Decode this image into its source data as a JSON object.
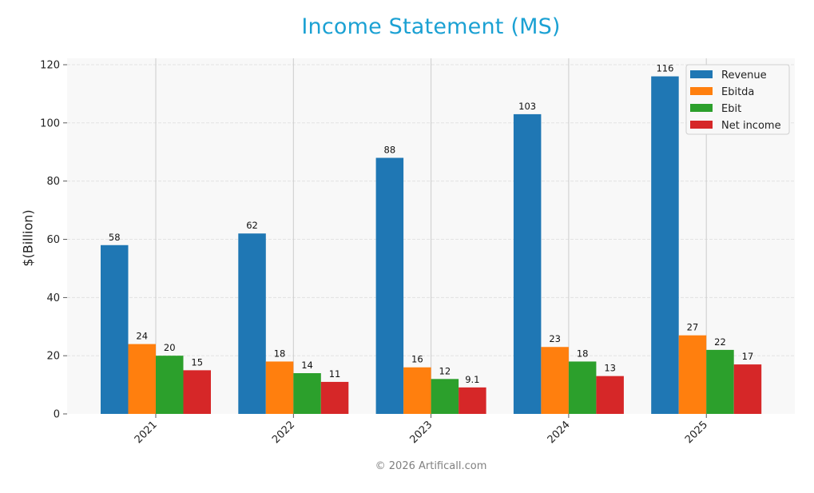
{
  "title": "Income Statement (MS)",
  "footer": "© 2026 Artificall.com",
  "colors": {
    "title": "#1ba1d3",
    "plot_background": "#f8f8f8",
    "Revenue": "#1f77b4",
    "Ebitda": "#ff7f0e",
    "Ebit": "#2ca02c",
    "Net income": "#d62728"
  },
  "chart_data": {
    "type": "bar",
    "title": "Income Statement (MS)",
    "xlabel": "",
    "ylabel": "$(Billion)",
    "ylim": [
      0,
      122
    ],
    "yticks": [
      0,
      20,
      40,
      60,
      80,
      100,
      120
    ],
    "grid": true,
    "legend_position": "upper right",
    "categories": [
      "2021",
      "2022",
      "2023",
      "2024",
      "2025"
    ],
    "series": [
      {
        "name": "Revenue",
        "color": "#1f77b4",
        "values": [
          58,
          62,
          88,
          103,
          116
        ],
        "labels": [
          "58",
          "62",
          "88",
          "103",
          "116"
        ]
      },
      {
        "name": "Ebitda",
        "color": "#ff7f0e",
        "values": [
          24,
          18,
          16,
          23,
          27
        ],
        "labels": [
          "24",
          "18",
          "16",
          "23",
          "27"
        ]
      },
      {
        "name": "Ebit",
        "color": "#2ca02c",
        "values": [
          20,
          14,
          12,
          18,
          22
        ],
        "labels": [
          "20",
          "14",
          "12",
          "18",
          "22"
        ]
      },
      {
        "name": "Net income",
        "color": "#d62728",
        "values": [
          15,
          11,
          9.1,
          13,
          17
        ],
        "labels": [
          "15",
          "11",
          "9.1",
          "13",
          "17"
        ]
      }
    ]
  }
}
